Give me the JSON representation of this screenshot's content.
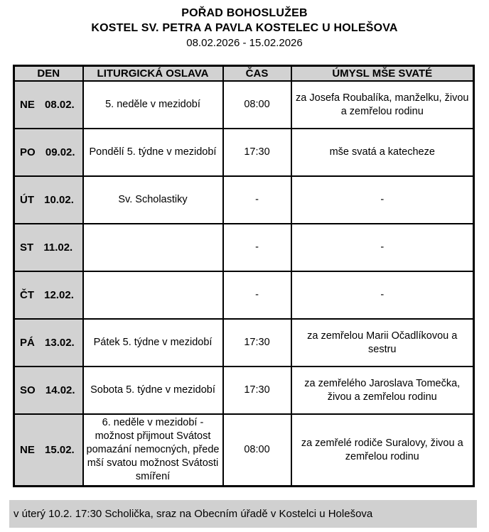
{
  "header": {
    "title": "POŘAD BOHOSLUŽEB",
    "subtitle": "KOSTEL SV. PETRA A PAVLA KOSTELEC U HOLEŠOVA",
    "date_range": "08.02.2026 - 15.02.2026"
  },
  "table": {
    "columns": [
      "DEN",
      "LITURGICKÁ OSLAVA",
      "ČAS",
      "ÚMYSL MŠE SVATÉ"
    ],
    "rows": [
      {
        "day": "NE",
        "date": "08.02.",
        "celebration": "5. neděle v mezidobí",
        "time": "08:00",
        "intention": "za Josefa Roubalíka, manželku, živou a zemřelou rodinu"
      },
      {
        "day": "PO",
        "date": "09.02.",
        "celebration": "Pondělí 5. týdne v mezidobí",
        "time": "17:30",
        "intention": "mše svatá a katecheze"
      },
      {
        "day": "ÚT",
        "date": "10.02.",
        "celebration": "Sv. Scholastiky",
        "time": "-",
        "intention": "-"
      },
      {
        "day": "ST",
        "date": "11.02.",
        "celebration": "",
        "time": "-",
        "intention": "-"
      },
      {
        "day": "ČT",
        "date": "12.02.",
        "celebration": "",
        "time": "-",
        "intention": "-"
      },
      {
        "day": "PÁ",
        "date": "13.02.",
        "celebration": "Pátek 5. týdne v mezidobí",
        "time": "17:30",
        "intention": "za zemřelou Marii Očadlíkovou a sestru"
      },
      {
        "day": "SO",
        "date": "14.02.",
        "celebration": "Sobota 5. týdne v mezidobí",
        "time": "17:30",
        "intention": "za zemřelého Jaroslava Tomečka, živou a zemřelou rodinu"
      },
      {
        "day": "NE",
        "date": "15.02.",
        "celebration": "6. neděle v mezidobí - možnost přijmout Svátost pomazání nemocných, přede mší svatou možnost Svátosti smíření",
        "time": "08:00",
        "intention": "za zemřelé rodiče Suralovy, živou a zemřelou rodinu"
      }
    ]
  },
  "footer": {
    "note": "v úterý 10.2. 17:30 Scholička, sraz na Obecním úřadě v Kostelci u Holešova"
  },
  "colors": {
    "cell_gray": "#d2d2d2",
    "footer_gray": "#d0d0d0",
    "border": "#000000",
    "background": "#ffffff"
  }
}
